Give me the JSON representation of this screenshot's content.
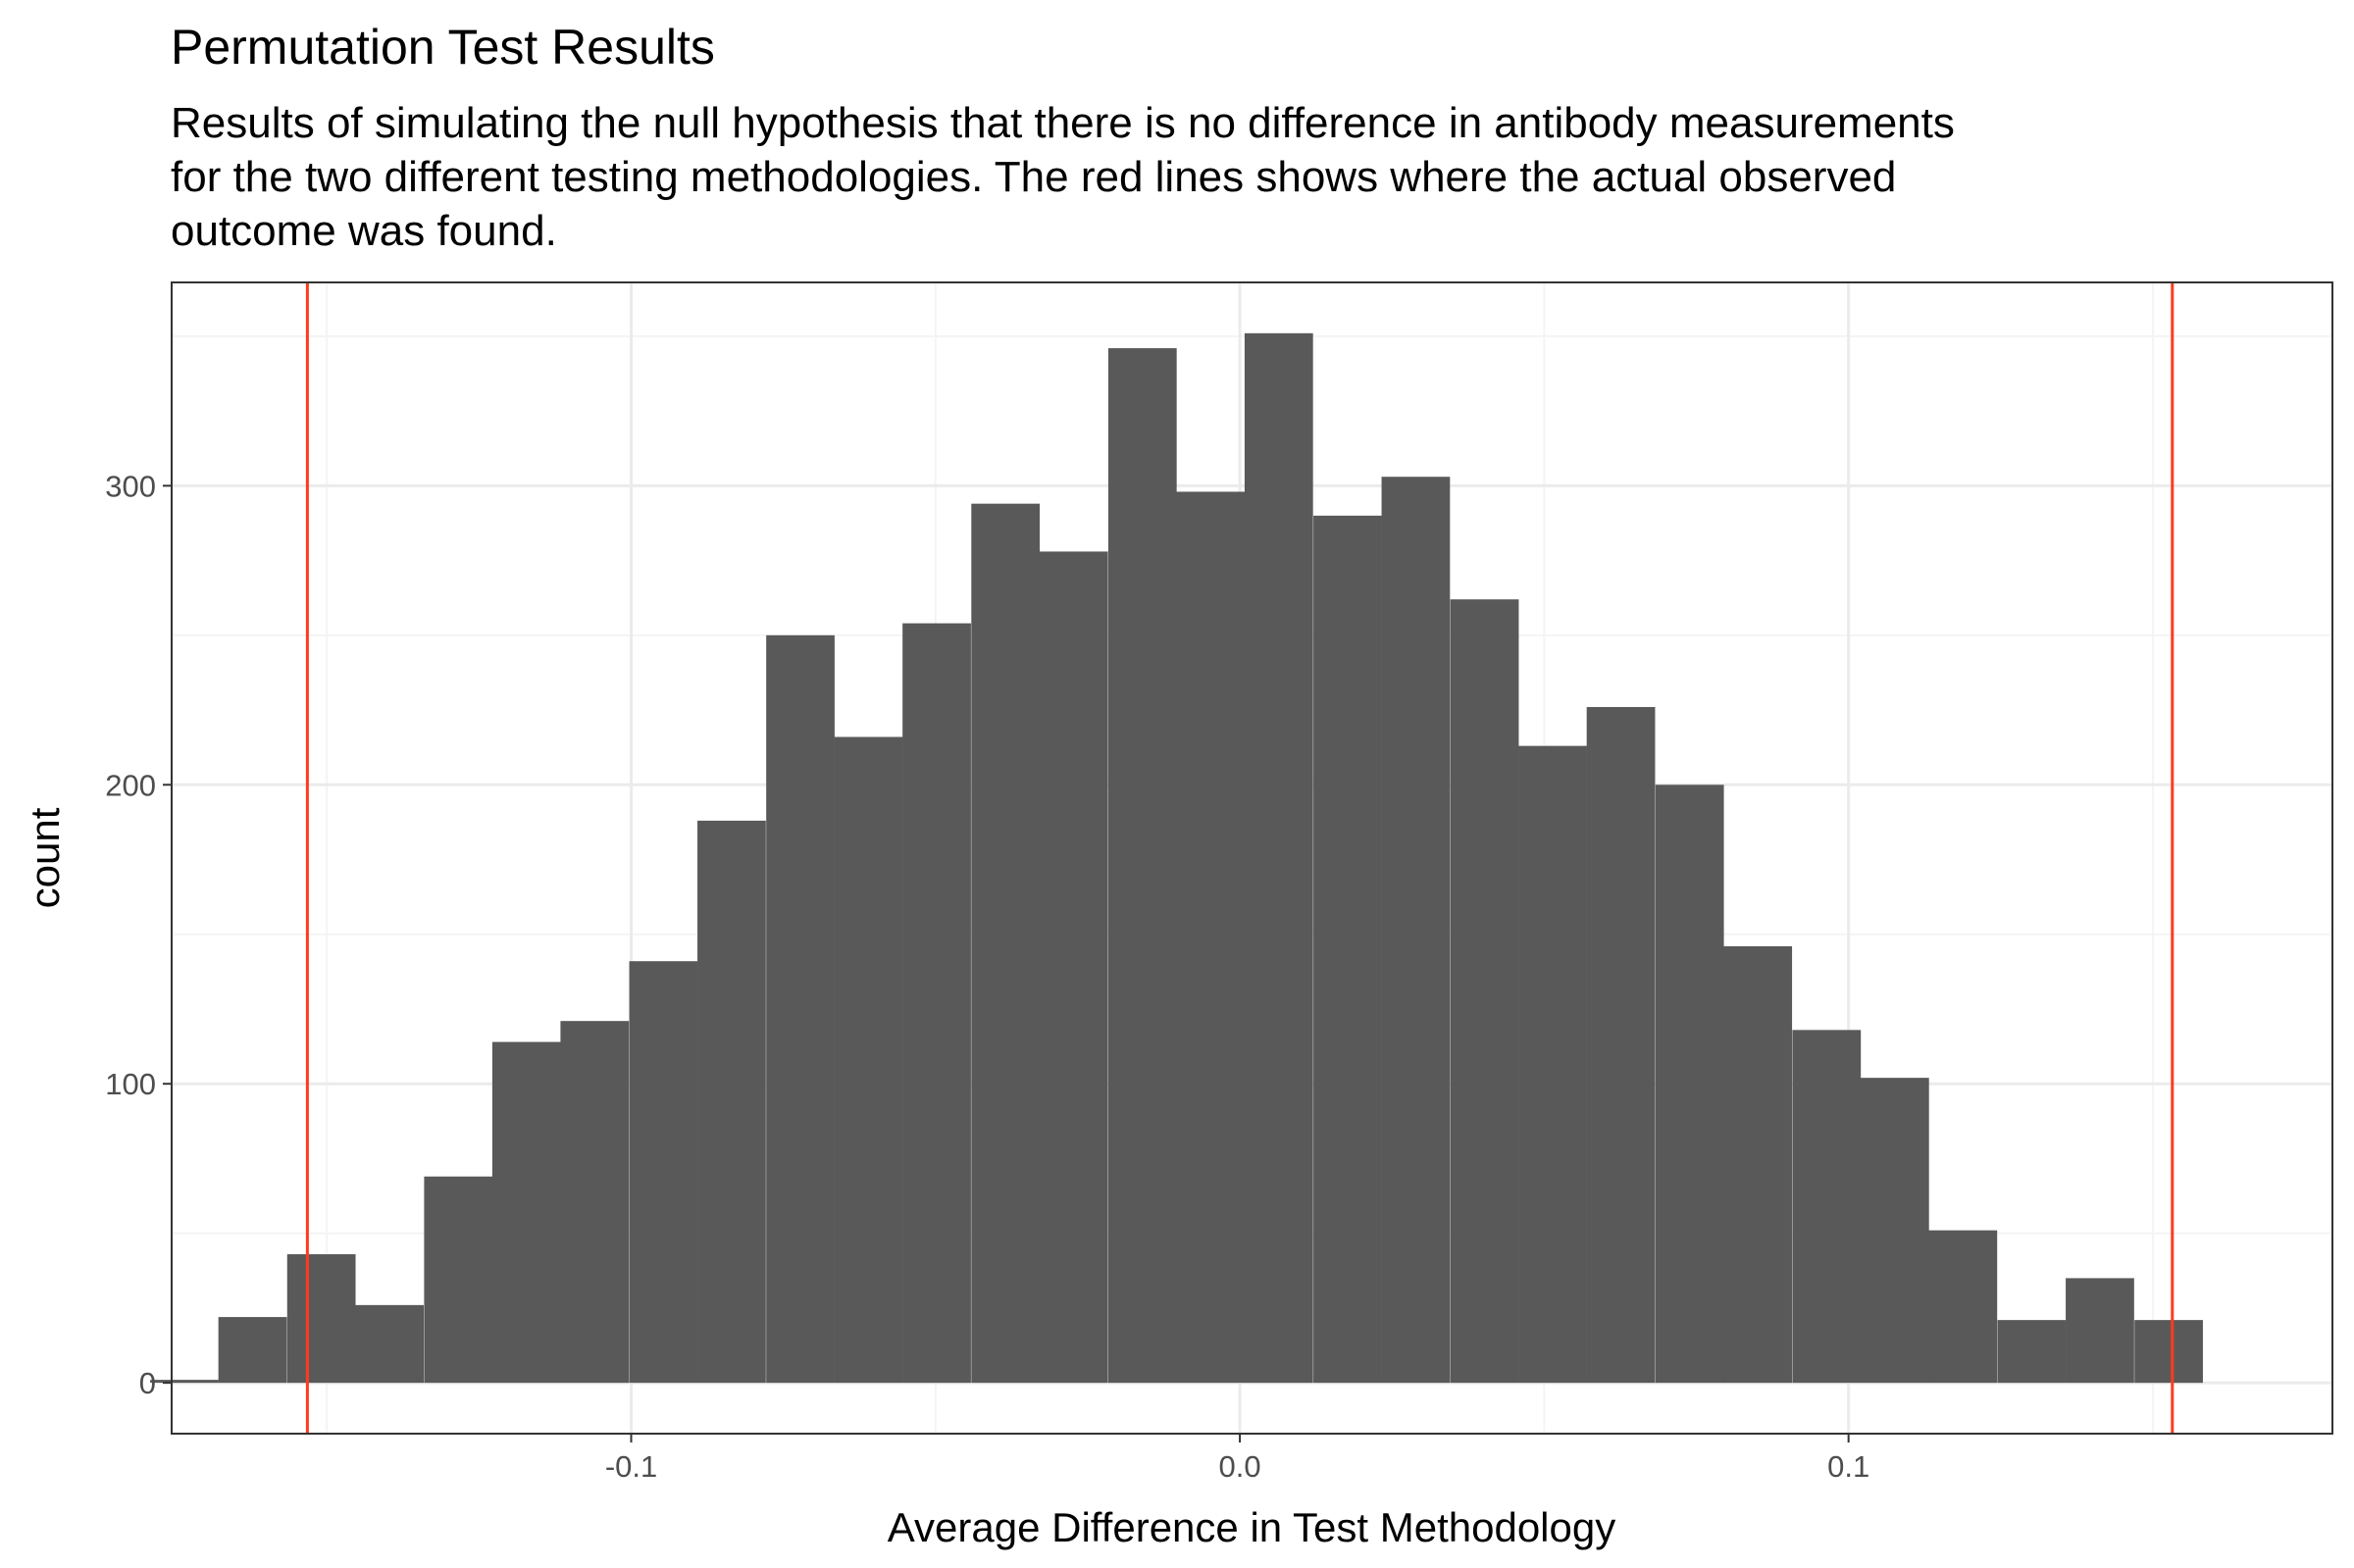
{
  "chart_data": {
    "type": "bar",
    "title": "Permutation Test Results",
    "subtitle": "Results of simulating the null hypothesis that there is no difference in antibody measurements\nfor the two different testing methodologies. The red lines shows where the actual observed\noutcome was found.",
    "xlabel": "Average Difference in Test Methodology",
    "ylabel": "count",
    "xlim": [
      -0.1755,
      0.1795
    ],
    "ylim": [
      -17,
      368
    ],
    "x_ticks": [
      -0.1,
      0.0,
      0.1
    ],
    "x_tick_labels": [
      "-0.1",
      "0.0",
      "0.1"
    ],
    "y_ticks": [
      0,
      100,
      200,
      300
    ],
    "y_tick_labels": [
      "0",
      "100",
      "200",
      "300"
    ],
    "grid": true,
    "bin_width": 0.01124,
    "bin_centers": [
      -0.1734,
      -0.1622,
      -0.1509,
      -0.1397,
      -0.1284,
      -0.1172,
      -0.106,
      -0.0947,
      -0.0835,
      -0.0722,
      -0.061,
      -0.0498,
      -0.0385,
      -0.0273,
      -0.016,
      -0.0048,
      0.0064,
      0.0177,
      0.0289,
      0.0402,
      0.0514,
      0.0626,
      0.0739,
      0.0851,
      0.0964,
      0.1076,
      0.1188,
      0.1301,
      0.1413,
      0.1526,
      0.1638
    ],
    "counts": [
      1,
      22,
      43,
      26,
      69,
      114,
      121,
      141,
      188,
      250,
      216,
      254,
      294,
      278,
      346,
      298,
      351,
      290,
      303,
      262,
      213,
      226,
      200,
      146,
      118,
      102,
      51,
      21,
      35,
      21,
      0
    ],
    "observed_lines": [
      -0.1532,
      0.1532
    ],
    "colors": {
      "bars": "#595959",
      "observed_line": "#ff3b1f",
      "panel_border": "#333333",
      "grid_major": "#ebebeb",
      "grid_minor": "#f4f4f4"
    }
  }
}
